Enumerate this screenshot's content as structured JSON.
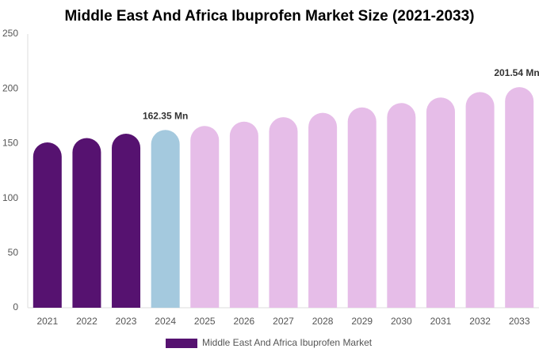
{
  "chart_data": {
    "type": "bar",
    "title": "Middle East And Africa Ibuprofen Market Size (2021-2033)",
    "categories": [
      "2021",
      "2022",
      "2023",
      "2024",
      "2025",
      "2026",
      "2027",
      "2028",
      "2029",
      "2030",
      "2031",
      "2032",
      "2033"
    ],
    "series": [
      {
        "name": "Middle East And Africa Ibuprofen Market",
        "color": "#561270",
        "colors": [
          "#561270",
          "#561270",
          "#561270",
          "#a4c9de",
          "#e6bde8",
          "#e6bde8",
          "#e6bde8",
          "#e6bde8",
          "#e6bde8",
          "#e6bde8",
          "#e6bde8",
          "#e6bde8",
          "#e6bde8"
        ],
        "values": [
          151,
          155,
          159,
          162.35,
          166,
          170,
          174,
          178,
          183,
          187,
          192,
          197,
          201.54
        ],
        "value_labels": [
          null,
          null,
          null,
          "162.35 Mn",
          null,
          null,
          null,
          null,
          null,
          null,
          null,
          null,
          "201.54 Mn"
        ]
      }
    ],
    "ylim": [
      0,
      250
    ],
    "yticks": [
      0,
      50,
      100,
      150,
      200,
      250
    ],
    "grid": false
  }
}
